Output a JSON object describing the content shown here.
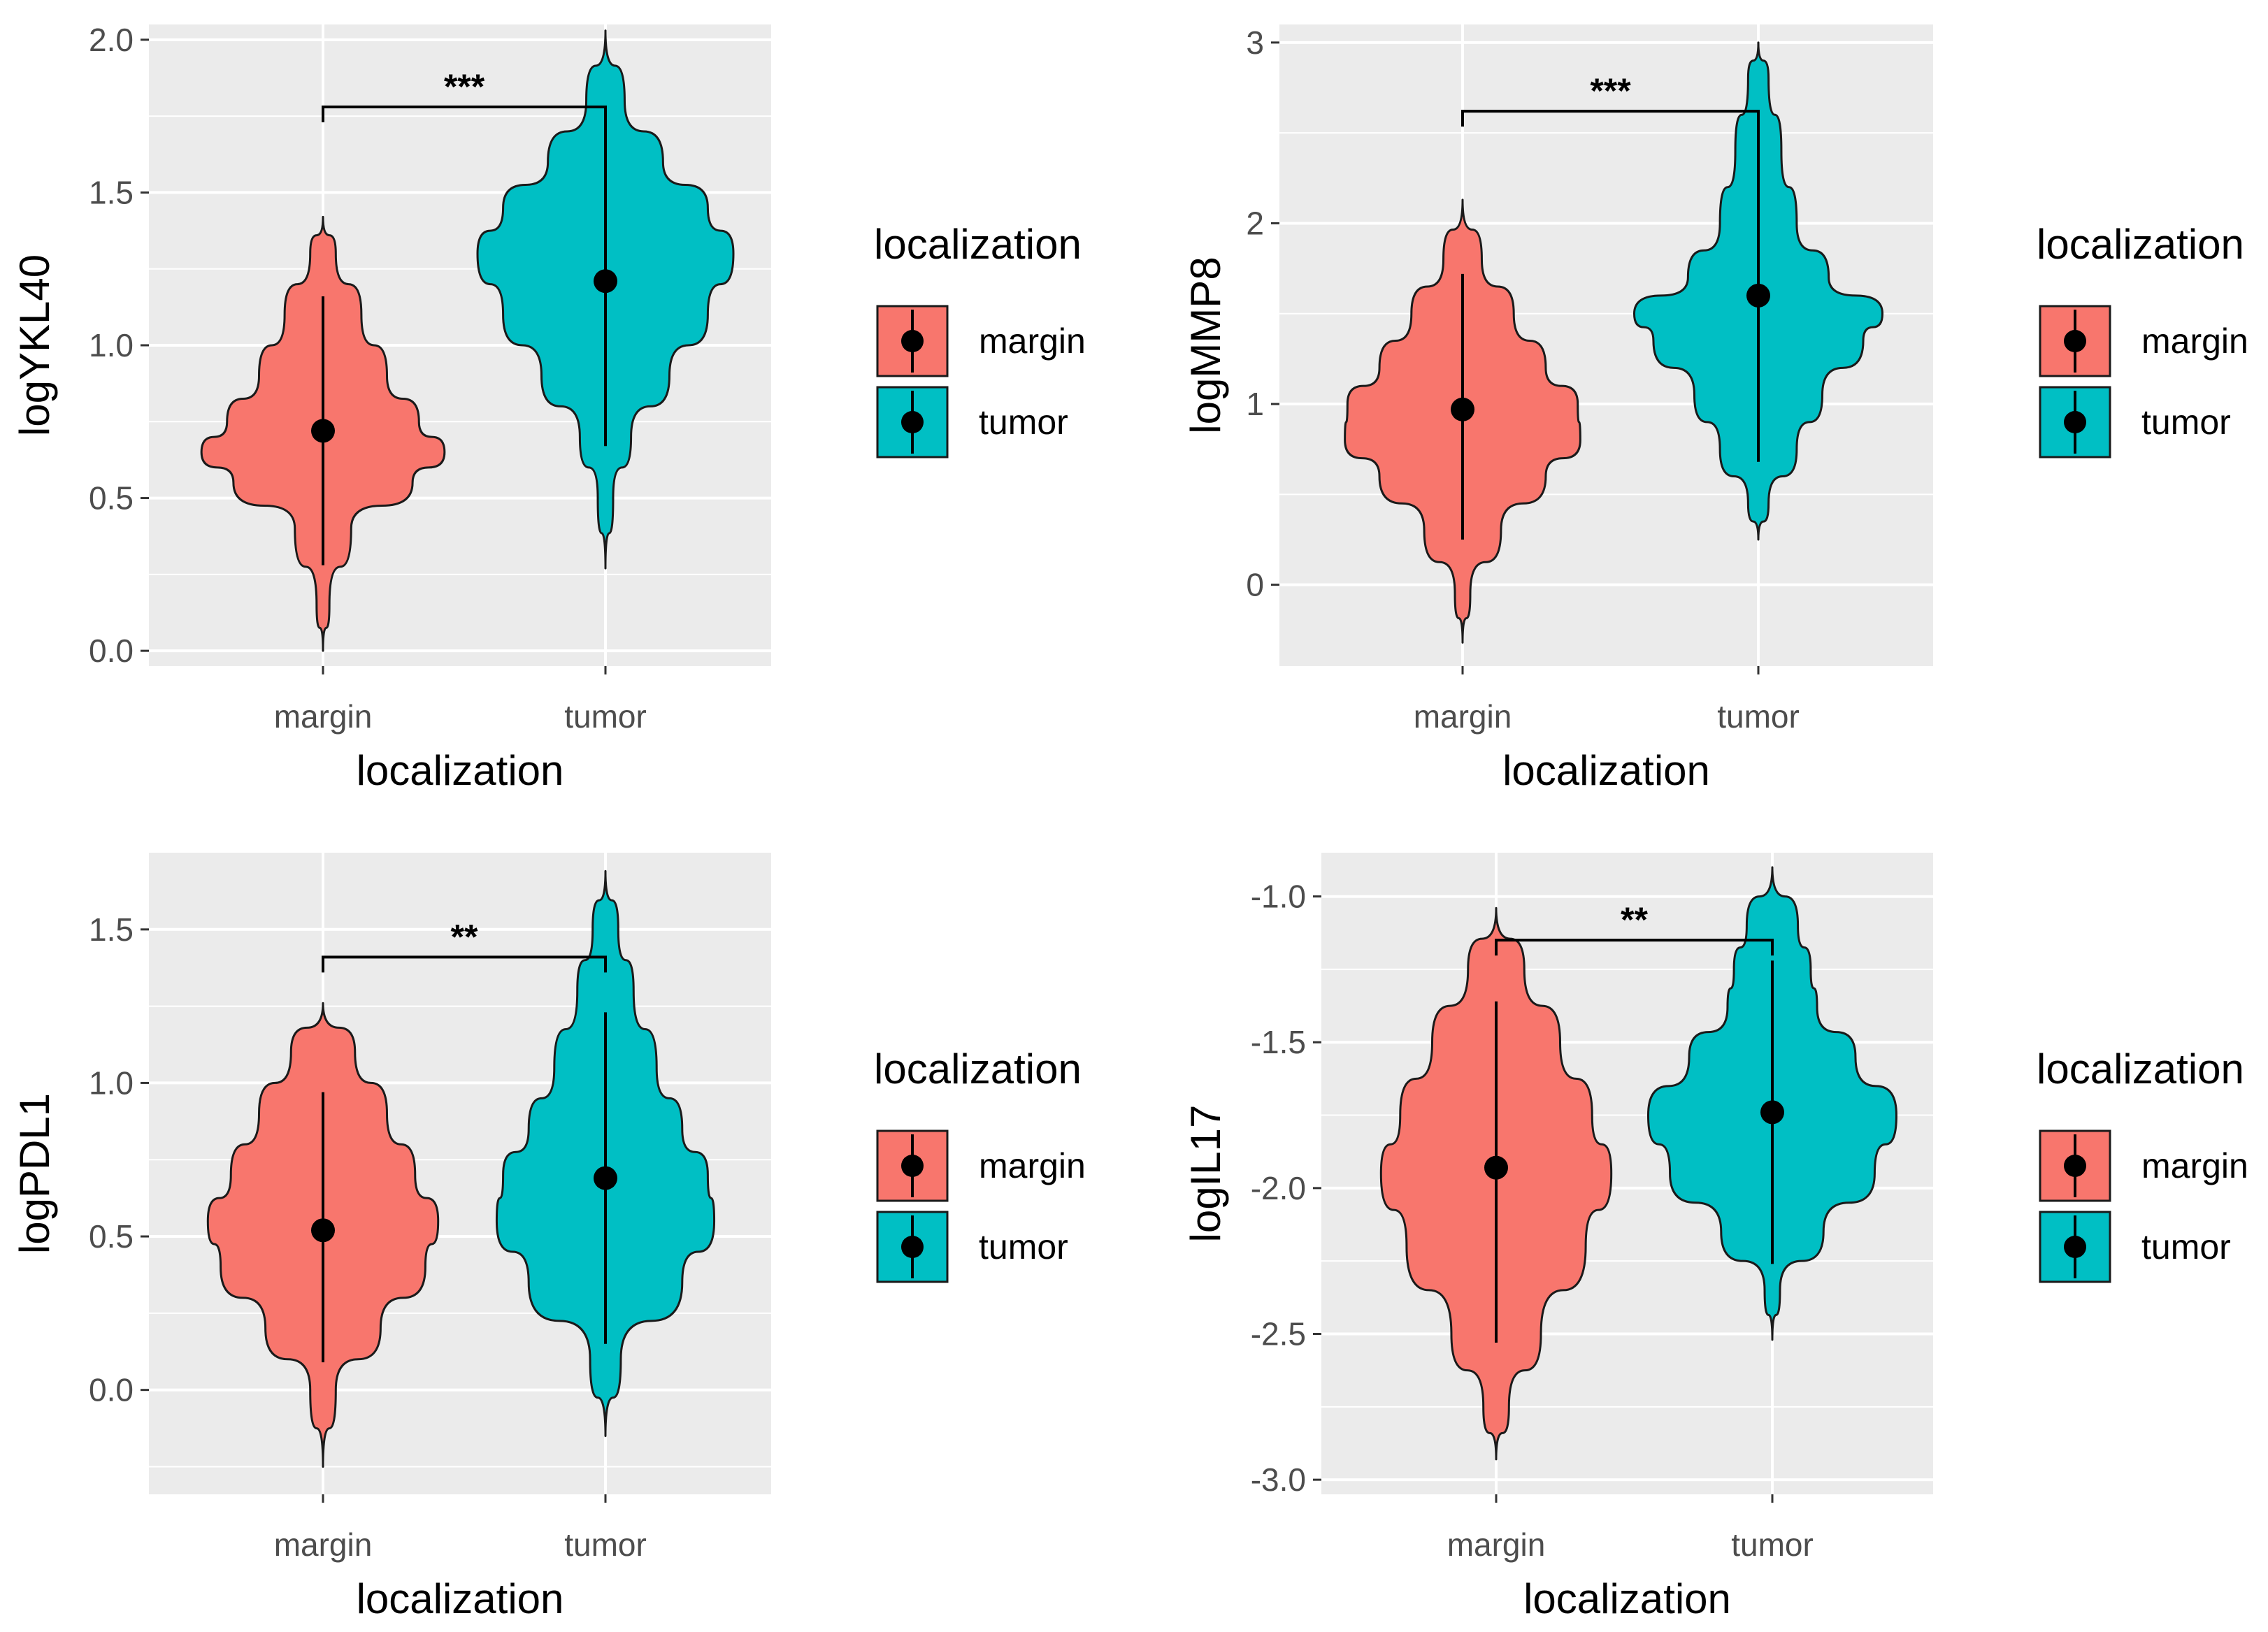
{
  "figure": {
    "background": "#ffffff",
    "panel_background": "#ebebeb",
    "grid_color": "#ffffff"
  },
  "colors": {
    "margin": "#f8766d",
    "tumor": "#00bfc4",
    "point": "#000000",
    "outline": "#1a1a1a"
  },
  "chart_data": [
    {
      "type": "violin",
      "xlabel": "localization",
      "ylabel": "logYKL40",
      "categories": [
        "margin",
        "tumor"
      ],
      "ylim": [
        -0.05,
        2.05
      ],
      "yticks": [
        0.0,
        0.5,
        1.0,
        1.5,
        2.0
      ],
      "ytick_labels": [
        "0.0",
        "0.5",
        "1.0",
        "1.5",
        "2.0"
      ],
      "series": [
        {
          "name": "margin",
          "color": "#f8766d",
          "y_min": 0.0,
          "y_max": 1.42,
          "mean": 0.72,
          "range_low": 0.28,
          "range_high": 1.16,
          "density_y": [
            0.0,
            0.15,
            0.4,
            0.55,
            0.65,
            0.75,
            0.9,
            1.1,
            1.3,
            1.42
          ],
          "density_w": [
            0.0,
            0.05,
            0.22,
            0.7,
            0.95,
            0.75,
            0.5,
            0.3,
            0.1,
            0.0
          ]
        },
        {
          "name": "tumor",
          "color": "#00bfc4",
          "y_min": 0.27,
          "y_max": 2.03,
          "mean": 1.21,
          "range_low": 0.67,
          "range_high": 1.78,
          "density_y": [
            0.27,
            0.5,
            0.7,
            0.9,
            1.1,
            1.3,
            1.45,
            1.6,
            1.8,
            2.03
          ],
          "density_w": [
            0.0,
            0.06,
            0.2,
            0.5,
            0.8,
            1.0,
            0.8,
            0.45,
            0.15,
            0.0
          ]
        }
      ],
      "significance": {
        "label": "***",
        "y": 1.78
      },
      "legend": {
        "title": "localization",
        "entries": [
          "margin",
          "tumor"
        ]
      }
    },
    {
      "type": "violin",
      "xlabel": "localization",
      "ylabel": "logMMP8",
      "categories": [
        "margin",
        "tumor"
      ],
      "ylim": [
        -0.45,
        3.1
      ],
      "yticks": [
        0,
        1,
        2,
        3
      ],
      "ytick_labels": [
        "0",
        "1",
        "2",
        "3"
      ],
      "series": [
        {
          "name": "margin",
          "color": "#f8766d",
          "y_min": -0.32,
          "y_max": 2.13,
          "mean": 0.97,
          "range_low": 0.25,
          "range_high": 1.72,
          "density_y": [
            -0.32,
            -0.05,
            0.3,
            0.6,
            0.8,
            1.0,
            1.2,
            1.5,
            1.8,
            2.13
          ],
          "density_w": [
            0.0,
            0.06,
            0.3,
            0.65,
            0.92,
            0.9,
            0.65,
            0.4,
            0.15,
            0.0
          ]
        },
        {
          "name": "tumor",
          "color": "#00bfc4",
          "y_min": 0.25,
          "y_max": 3.0,
          "mean": 1.6,
          "range_low": 0.68,
          "range_high": 2.55,
          "density_y": [
            0.25,
            0.45,
            0.75,
            1.05,
            1.35,
            1.5,
            1.7,
            2.0,
            2.4,
            2.8,
            3.0
          ],
          "density_w": [
            0.0,
            0.08,
            0.3,
            0.5,
            0.82,
            0.97,
            0.55,
            0.3,
            0.18,
            0.08,
            0.0
          ]
        }
      ],
      "significance": {
        "label": "***",
        "y": 2.62
      },
      "legend": {
        "title": "localization",
        "entries": [
          "margin",
          "tumor"
        ]
      }
    },
    {
      "type": "violin",
      "xlabel": "localization",
      "ylabel": "logPDL1",
      "categories": [
        "margin",
        "tumor"
      ],
      "ylim": [
        -0.34,
        1.75
      ],
      "yticks": [
        0.0,
        0.5,
        1.0,
        1.5
      ],
      "ytick_labels": [
        "0.0",
        "0.5",
        "1.0",
        "1.5"
      ],
      "series": [
        {
          "name": "margin",
          "color": "#f8766d",
          "y_min": -0.25,
          "y_max": 1.26,
          "mean": 0.52,
          "range_low": 0.09,
          "range_high": 0.97,
          "density_y": [
            -0.25,
            0.0,
            0.2,
            0.4,
            0.55,
            0.7,
            0.9,
            1.1,
            1.26
          ],
          "density_w": [
            0.0,
            0.1,
            0.45,
            0.8,
            0.9,
            0.72,
            0.5,
            0.25,
            0.0
          ]
        },
        {
          "name": "tumor",
          "color": "#00bfc4",
          "y_min": -0.15,
          "y_max": 1.69,
          "mean": 0.69,
          "range_low": 0.15,
          "range_high": 1.23,
          "density_y": [
            -0.15,
            0.1,
            0.35,
            0.55,
            0.7,
            0.85,
            1.05,
            1.3,
            1.5,
            1.69
          ],
          "density_w": [
            0.0,
            0.12,
            0.6,
            0.85,
            0.8,
            0.6,
            0.4,
            0.22,
            0.1,
            0.0
          ]
        }
      ],
      "significance": {
        "label": "**",
        "y": 1.41
      },
      "legend": {
        "title": "localization",
        "entries": [
          "margin",
          "tumor"
        ]
      }
    },
    {
      "type": "violin",
      "xlabel": "localization",
      "ylabel": "logIL17",
      "categories": [
        "margin",
        "tumor"
      ],
      "ylim": [
        -3.05,
        -0.85
      ],
      "yticks": [
        -3.0,
        -2.5,
        -2.0,
        -1.5,
        -1.0
      ],
      "ytick_labels": [
        "-3.0",
        "-2.5",
        "-2.0",
        "-1.5",
        "-1.0"
      ],
      "series": [
        {
          "name": "margin",
          "color": "#f8766d",
          "y_min": -2.93,
          "y_max": -1.04,
          "mean": -1.93,
          "range_low": -2.53,
          "range_high": -1.36,
          "density_y": [
            -2.93,
            -2.75,
            -2.5,
            -2.2,
            -1.95,
            -1.75,
            -1.5,
            -1.25,
            -1.04
          ],
          "density_w": [
            0.0,
            0.1,
            0.35,
            0.7,
            0.9,
            0.75,
            0.5,
            0.22,
            0.0
          ]
        },
        {
          "name": "tumor",
          "color": "#00bfc4",
          "y_min": -2.52,
          "y_max": -0.9,
          "mean": -1.74,
          "range_low": -2.26,
          "range_high": -1.22,
          "density_y": [
            -2.52,
            -2.35,
            -2.15,
            -1.95,
            -1.75,
            -1.55,
            -1.38,
            -1.25,
            -1.1,
            -0.9
          ],
          "density_w": [
            0.0,
            0.06,
            0.4,
            0.8,
            0.97,
            0.65,
            0.35,
            0.3,
            0.2,
            0.0
          ]
        }
      ],
      "significance": {
        "label": "**",
        "y": -1.15
      },
      "legend": {
        "title": "localization",
        "entries": [
          "margin",
          "tumor"
        ]
      }
    }
  ]
}
